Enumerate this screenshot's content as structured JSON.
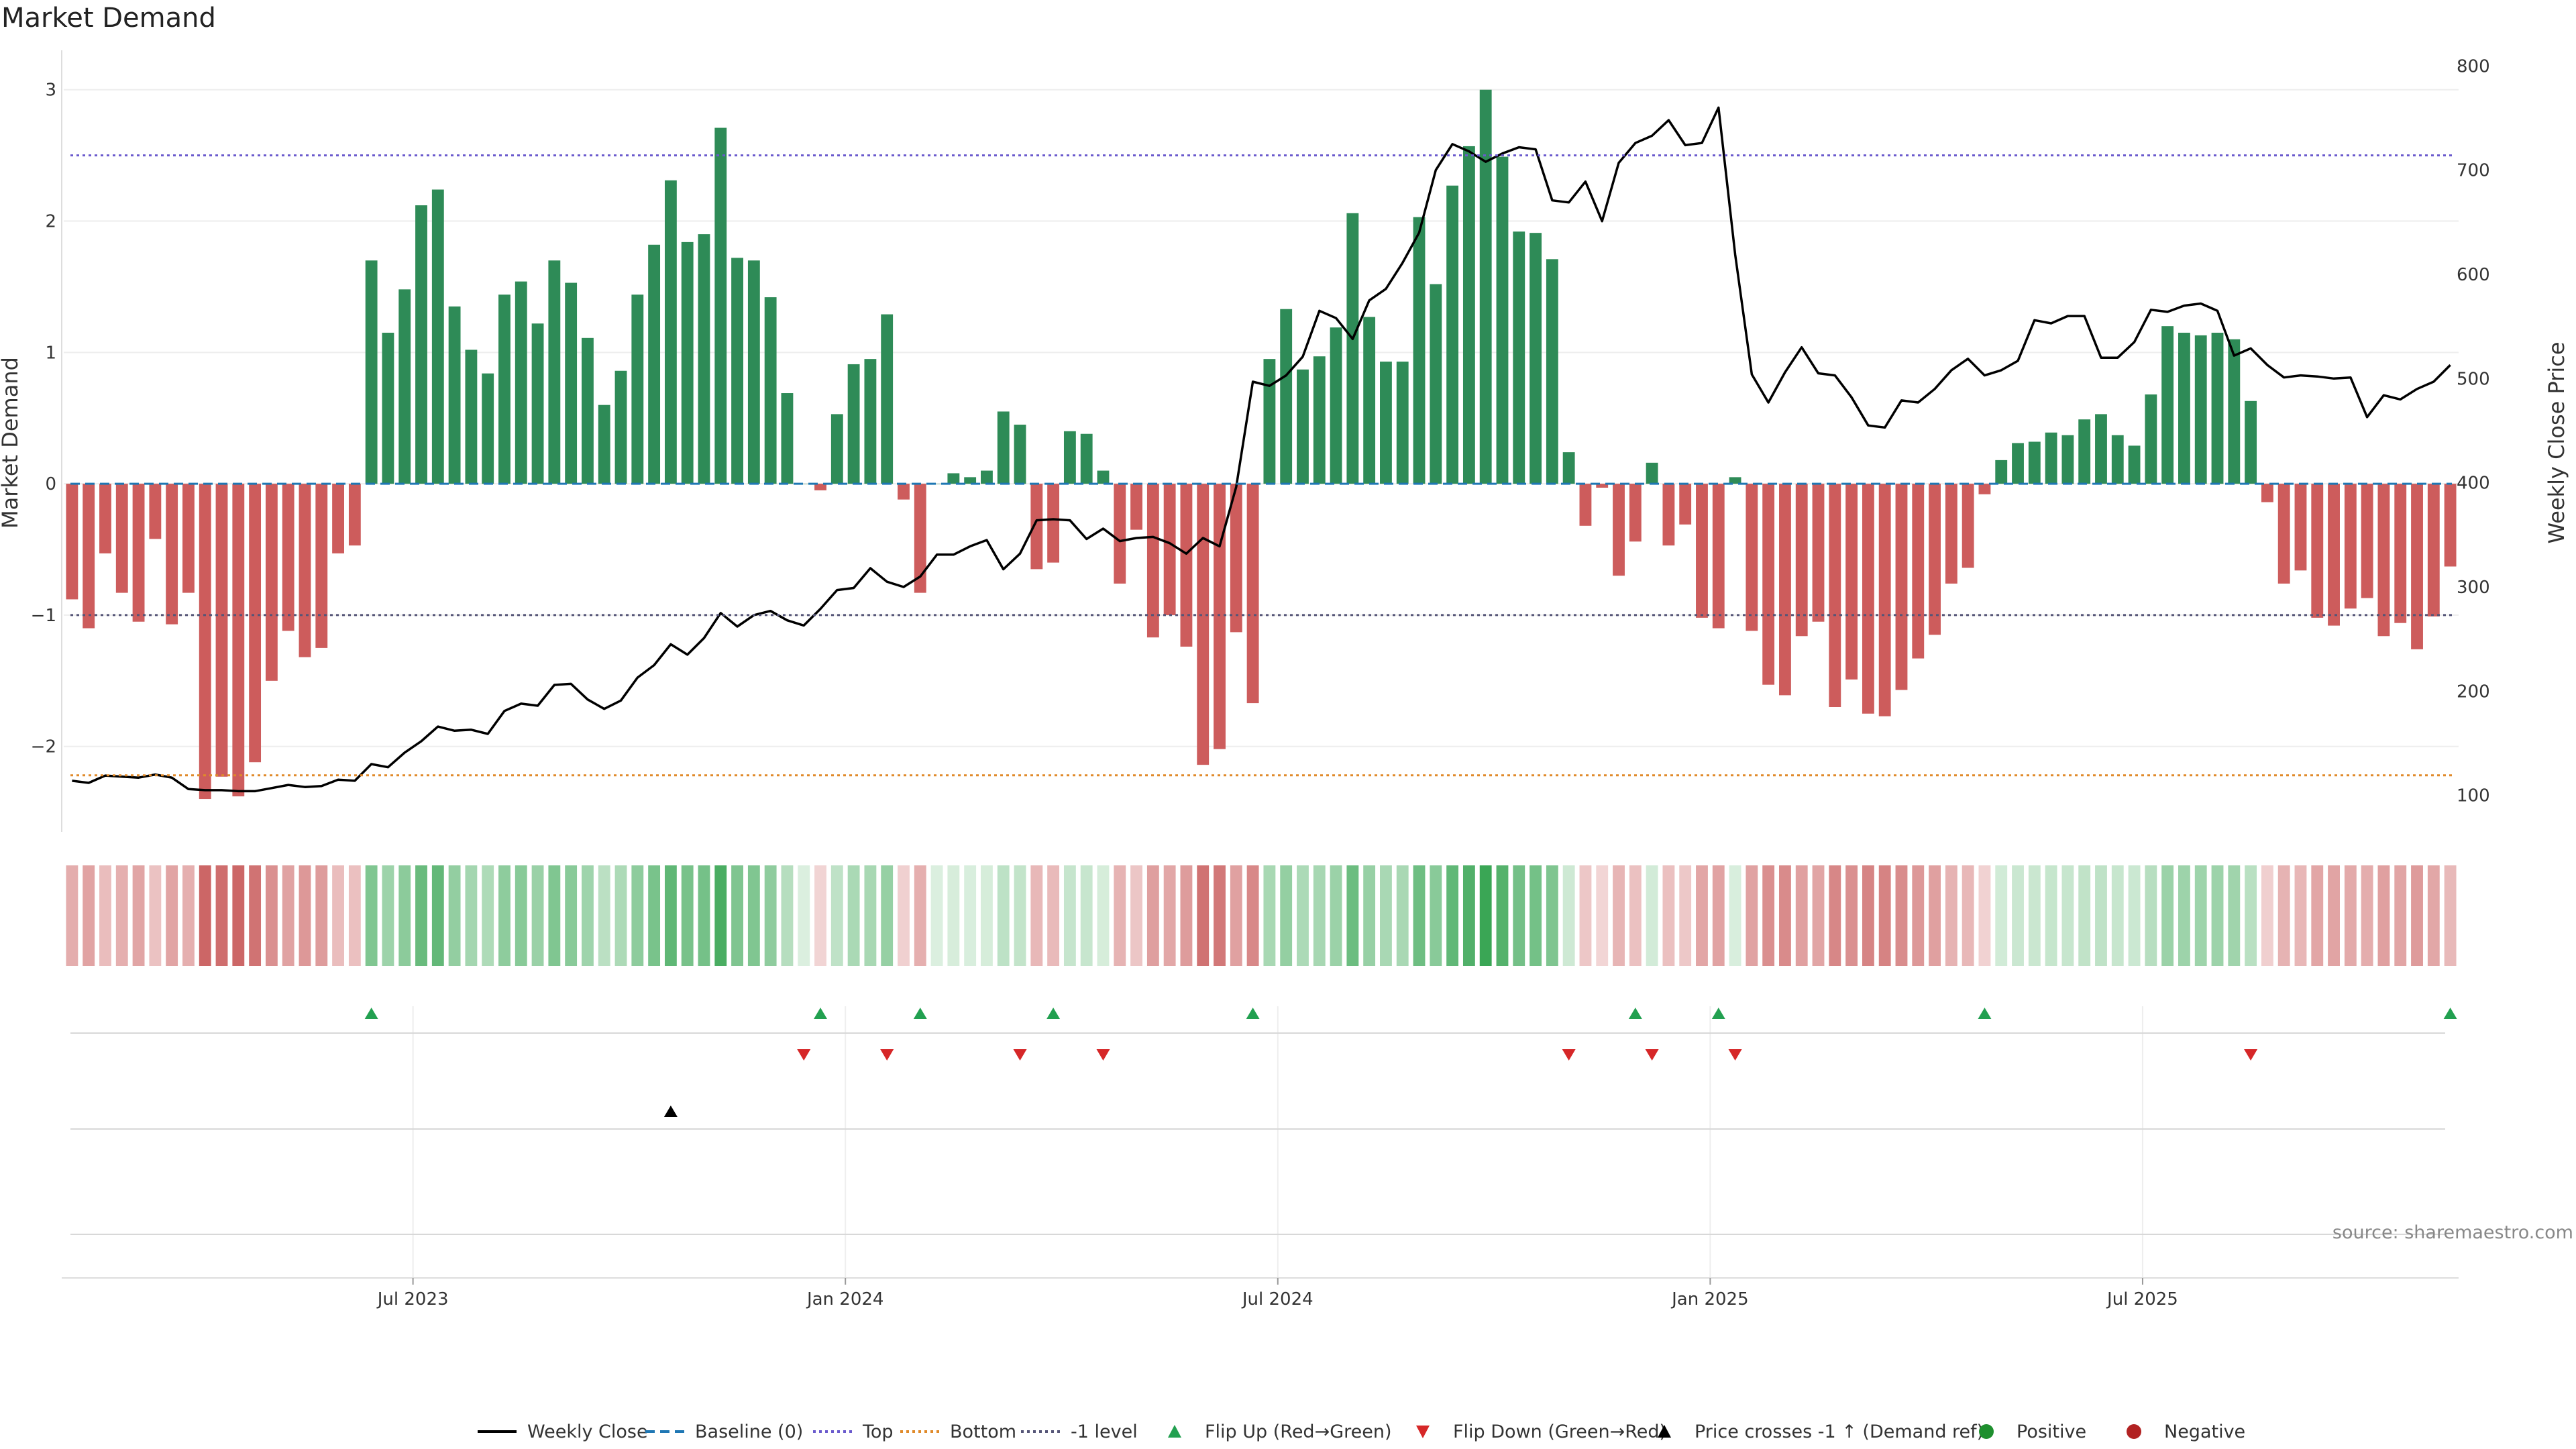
{
  "chart_data": {
    "type": "bar",
    "title": "Market Demand",
    "ylabel": "Market Demand",
    "y2label": "Weekly Close Price",
    "ylim": [
      -2.65,
      3.3
    ],
    "y2lim": [
      65,
      815
    ],
    "yticks": [
      -2,
      -1,
      0,
      1,
      2,
      3
    ],
    "y2ticks": [
      100,
      200,
      300,
      400,
      500,
      600,
      700,
      800
    ],
    "reference_lines": {
      "top": 2.5,
      "bottom": -2.22,
      "neg_one": -1,
      "baseline": 0
    },
    "x_start": "2023-01-06",
    "x_tick_labels": [
      "Jul 2023",
      "Jan 2024",
      "Jul 2024",
      "Jan 2025",
      "Jul 2025"
    ],
    "x_tick_weeks": [
      21,
      47,
      73,
      99,
      125
    ],
    "demand": [
      -0.88,
      -1.1,
      -0.53,
      -0.83,
      -1.05,
      -0.42,
      -1.07,
      -0.83,
      -2.4,
      -2.23,
      -2.38,
      -2.12,
      -1.5,
      -1.12,
      -1.32,
      -1.25,
      -0.53,
      -0.47,
      1.7,
      1.15,
      1.48,
      2.12,
      2.24,
      1.35,
      1.02,
      0.84,
      1.44,
      1.54,
      1.22,
      1.7,
      1.53,
      1.11,
      0.6,
      0.86,
      1.44,
      1.82,
      2.31,
      1.84,
      1.9,
      2.71,
      1.72,
      1.7,
      1.42,
      0.69,
      0.0,
      -0.05,
      0.53,
      0.91,
      0.95,
      1.29,
      -0.12,
      -0.83,
      0.0,
      0.08,
      0.05,
      0.1,
      0.55,
      0.45,
      -0.65,
      -0.6,
      0.4,
      0.38,
      0.1,
      -0.76,
      -0.35,
      -1.17,
      -1.0,
      -1.24,
      -2.14,
      -2.02,
      -1.13,
      -1.67,
      0.95,
      1.33,
      0.87,
      0.97,
      1.19,
      2.06,
      1.27,
      0.93,
      0.93,
      2.03,
      1.52,
      2.27,
      2.57,
      3.0,
      2.49,
      1.92,
      1.91,
      1.71,
      0.24,
      -0.32,
      -0.03,
      -0.7,
      -0.44,
      0.16,
      -0.47,
      -0.31,
      -1.02,
      -1.1,
      0.05,
      -1.12,
      -1.53,
      -1.61,
      -1.16,
      -1.05,
      -1.7,
      -1.49,
      -1.75,
      -1.77,
      -1.57,
      -1.33,
      -1.15,
      -0.76,
      -0.64,
      -0.08,
      0.18,
      0.31,
      0.32,
      0.39,
      0.37,
      0.49,
      0.53,
      0.37,
      0.29,
      0.68,
      1.2,
      1.15,
      1.13,
      1.15,
      1.1,
      0.63,
      -0.14,
      -0.76,
      -0.66,
      -1.02,
      -1.08,
      -0.95,
      -0.87,
      -1.16,
      -1.06,
      -1.26,
      -1.01,
      -0.63
    ],
    "weekly_close": [
      114,
      112,
      119,
      118,
      117,
      120,
      117,
      106,
      105,
      105,
      104,
      104,
      107,
      110,
      108,
      109,
      115,
      114,
      130,
      127,
      141,
      152,
      166,
      162,
      163,
      159,
      181,
      188,
      186,
      206,
      207,
      192,
      183,
      191,
      213,
      225,
      245,
      235,
      251,
      275,
      262,
      273,
      277,
      268,
      263,
      279,
      297,
      299,
      318,
      305,
      300,
      310,
      331,
      331,
      339,
      345,
      317,
      332,
      364,
      365,
      364,
      346,
      356,
      344,
      347,
      348,
      342,
      332,
      347,
      339,
      396,
      497,
      493,
      503,
      521,
      565,
      558,
      538,
      575,
      586,
      611,
      640,
      700,
      725,
      718,
      708,
      716,
      722,
      720,
      671,
      669,
      689,
      651,
      707,
      726,
      733,
      748,
      724,
      726,
      760,
      619,
      504,
      477,
      506,
      530,
      505,
      503,
      482,
      455,
      453,
      479,
      477,
      490,
      508,
      519,
      503,
      508,
      517,
      556,
      553,
      560,
      560,
      520,
      520,
      535,
      566,
      564,
      570,
      572,
      565,
      522,
      529,
      513,
      501,
      503,
      502,
      500,
      501,
      463,
      484,
      480,
      490,
      497,
      513
    ],
    "flip_up_weeks": [
      18,
      45,
      51,
      59,
      71,
      94,
      99,
      115,
      143
    ],
    "flip_down_weeks": [
      44,
      49,
      57,
      62,
      90,
      95,
      100,
      131
    ],
    "price_cross_weeks": [
      36
    ],
    "heat_min": -2.4,
    "heat_max": 3.0,
    "colors": {
      "positive_bar": "#2e8b57",
      "negative_bar": "#cd5c5c",
      "weekly_close": "#000000",
      "baseline": "#1f77b4",
      "top": "#6a5acd",
      "bottom": "#e08a2a",
      "neg_one": "#555577",
      "flip_up": "#22a050",
      "flip_down": "#d62728",
      "price_cross": "#000000",
      "positive_dot": "#1e8f2e",
      "negative_dot": "#b22222"
    },
    "legend": [
      {
        "label": "Weekly Close",
        "kind": "line-solid",
        "color": "#000000"
      },
      {
        "label": "Baseline (0)",
        "kind": "line-dash",
        "color": "#1f77b4"
      },
      {
        "label": "Top",
        "kind": "line-dot",
        "color": "#6a5acd"
      },
      {
        "label": "Bottom",
        "kind": "line-dot",
        "color": "#e08a2a"
      },
      {
        "label": "-1 level",
        "kind": "line-dot",
        "color": "#555577"
      },
      {
        "label": "Flip Up (Red→Green)",
        "kind": "tri-up",
        "color": "#22a050"
      },
      {
        "label": "Flip Down (Green→Red)",
        "kind": "tri-down",
        "color": "#d62728"
      },
      {
        "label": "Price crosses -1 ↑ (Demand ref)",
        "kind": "tri-up",
        "color": "#000000"
      },
      {
        "label": "Positive",
        "kind": "dot",
        "color": "#1e8f2e"
      },
      {
        "label": "Negative",
        "kind": "dot",
        "color": "#b22222"
      }
    ],
    "source": "source: sharemaestro.com"
  }
}
